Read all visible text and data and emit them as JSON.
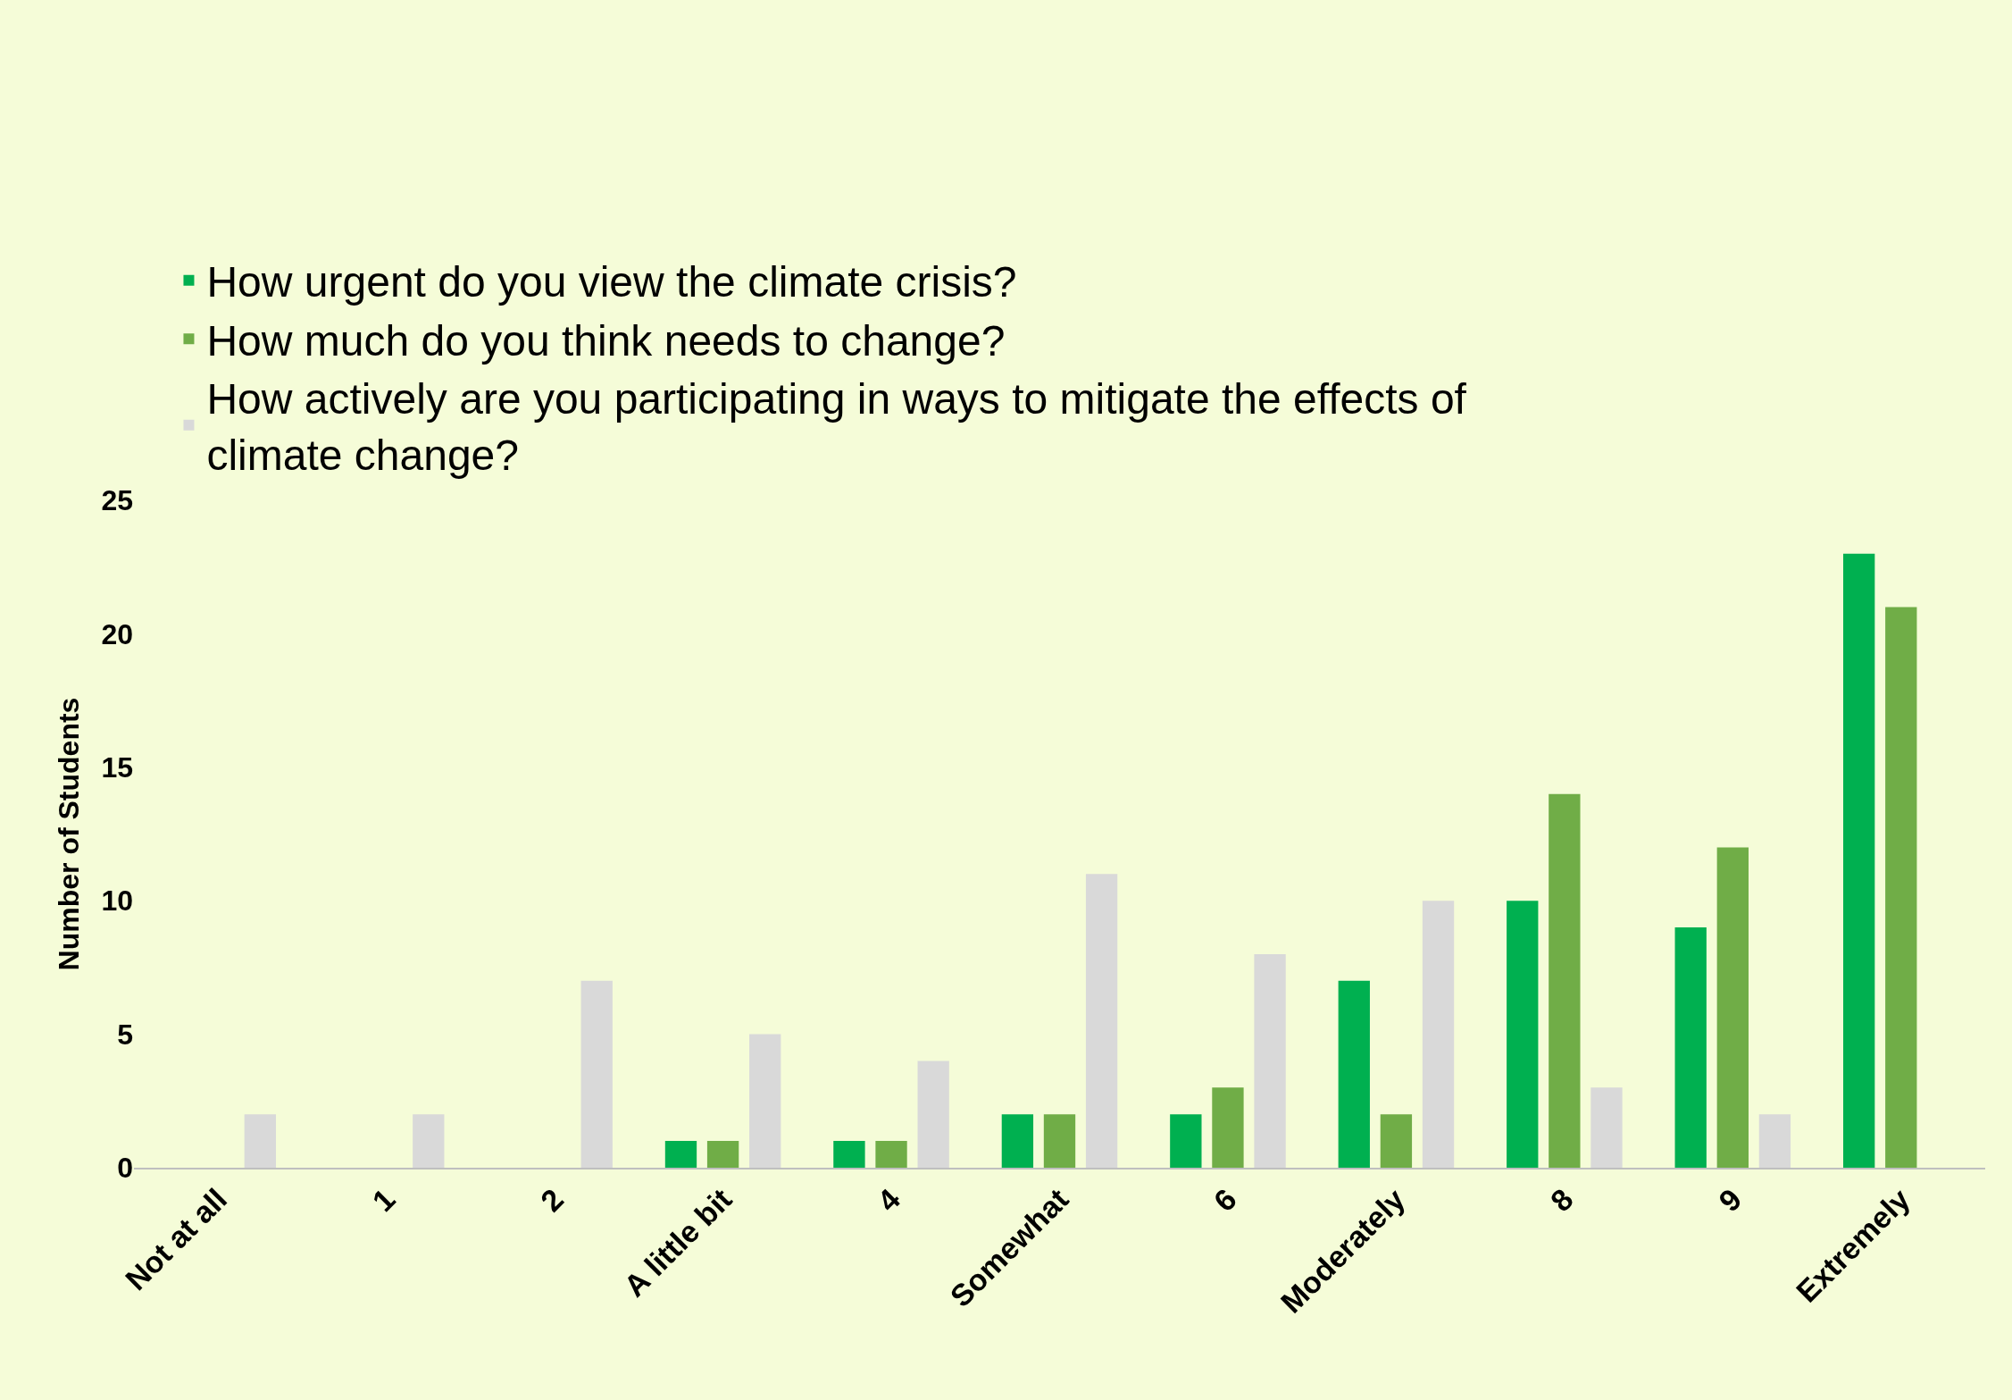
{
  "chart_data": {
    "type": "bar",
    "ylabel": "Number of Students",
    "categories": [
      "Not at all",
      "1",
      "2",
      "A little bit",
      "4",
      "Somewhat",
      "6",
      "Moderately",
      "8",
      "9",
      "Extremely"
    ],
    "series": [
      {
        "name": "How urgent do you view the climate crisis?",
        "color": "#00b050",
        "values": [
          0,
          0,
          0,
          1,
          1,
          2,
          2,
          7,
          10,
          9,
          23
        ]
      },
      {
        "name": "How much do you think needs to change?",
        "color": "#70ad47",
        "values": [
          0,
          0,
          0,
          1,
          1,
          2,
          3,
          2,
          14,
          12,
          21
        ]
      },
      {
        "name": "How actively are you participating in ways to mitigate the effects of climate change?",
        "color": "#d9d9d9",
        "values": [
          2,
          2,
          7,
          5,
          4,
          11,
          8,
          10,
          3,
          2,
          0
        ]
      }
    ],
    "ylim": [
      0,
      25
    ],
    "yticks": [
      0,
      5,
      10,
      15,
      20,
      25
    ],
    "grid": false,
    "legend": "top"
  }
}
